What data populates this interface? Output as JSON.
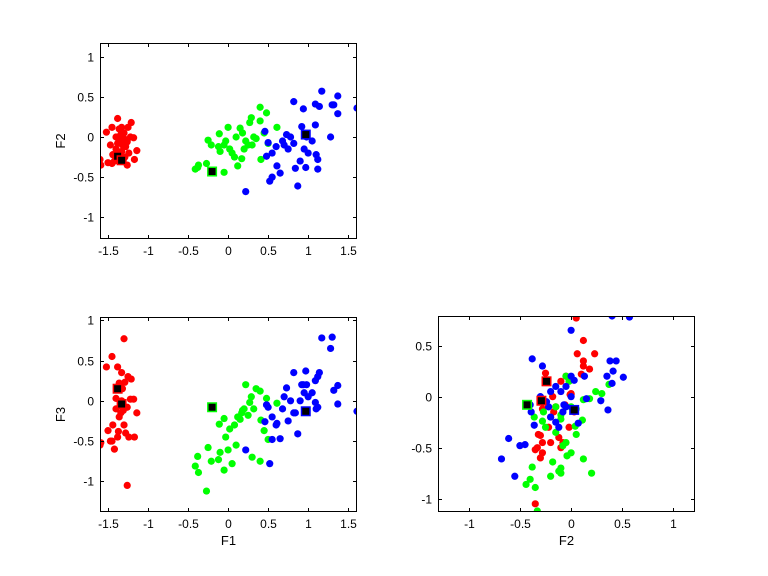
{
  "chart_data": {
    "type": "scatter",
    "features": [
      "F1",
      "F2",
      "F3"
    ],
    "grid": false,
    "series": [
      {
        "color": "#ff0000",
        "points": [
          [
            -1.38,
            0.23,
            0.42
          ],
          [
            -1.21,
            0.18,
            0.27
          ],
          [
            -1.45,
            0.12,
            0.55
          ],
          [
            -1.52,
            0.06,
            0.42
          ],
          [
            -1.33,
            0.12,
            0.35
          ],
          [
            -1.25,
            0.12,
            0.3
          ],
          [
            -1.18,
            -0.01,
            0.02
          ],
          [
            -1.14,
            -0.17,
            -0.15
          ],
          [
            -1.17,
            -0.28,
            -0.45
          ],
          [
            -1.6,
            -0.28,
            -0.55
          ],
          [
            -1.59,
            -0.35,
            -0.52
          ],
          [
            -1.26,
            -0.35,
            -1.05
          ],
          [
            -1.3,
            0.05,
            0.77
          ],
          [
            -1.35,
            -0.05,
            0.2
          ],
          [
            -1.32,
            -0.1,
            0.15
          ],
          [
            -1.4,
            -0.15,
            -0.1
          ],
          [
            -1.36,
            -0.2,
            -0.2
          ],
          [
            -1.3,
            -0.02,
            -0.3
          ],
          [
            -1.28,
            -0.12,
            -0.4
          ],
          [
            -1.42,
            -0.3,
            -0.6
          ],
          [
            -1.45,
            -0.33,
            -0.5
          ],
          [
            -1.5,
            -0.32,
            -0.37
          ],
          [
            -1.38,
            -0.08,
            -0.45
          ],
          [
            -1.33,
            -0.18,
            0.0
          ],
          [
            -1.26,
            -0.06,
            -0.08
          ],
          [
            -1.24,
            -0.2,
            -0.45
          ],
          [
            -1.4,
            0.0,
            0.03
          ],
          [
            -1.34,
            0.03,
            -0.15
          ],
          [
            -1.29,
            -0.25,
            0.23
          ],
          [
            -1.44,
            -0.22,
            -0.3
          ],
          [
            -1.22,
            0.0,
            0.02
          ],
          [
            -1.37,
            -0.3,
            -0.38
          ],
          [
            -1.31,
            -0.28,
            -0.12
          ],
          [
            -1.47,
            -0.1,
            -0.5
          ],
          [
            -1.36,
            0.1,
            0.22
          ]
        ],
        "centroids": [
          [
            -1.38,
            -0.24,
            0.15
          ],
          [
            -1.33,
            -0.29,
            -0.04
          ]
        ]
      },
      {
        "color": "#00ff00",
        "points": [
          [
            -0.41,
            -0.4,
            -0.81
          ],
          [
            -0.37,
            -0.35,
            -0.89
          ],
          [
            -0.38,
            -0.38,
            -0.69
          ],
          [
            -0.27,
            -0.33,
            -1.12
          ],
          [
            -0.05,
            -0.44,
            -0.86
          ],
          [
            -0.25,
            -0.04,
            -0.58
          ],
          [
            -0.21,
            -0.1,
            -0.75
          ],
          [
            -0.11,
            0.04,
            -0.29
          ],
          [
            -0.12,
            -0.12,
            -0.73
          ],
          [
            0.0,
            0.12,
            -0.61
          ],
          [
            -0.03,
            -0.05,
            -0.45
          ],
          [
            0.02,
            -0.15,
            -0.35
          ],
          [
            0.05,
            -0.2,
            -0.78
          ],
          [
            -0.1,
            -0.18,
            -0.64
          ],
          [
            0.12,
            -0.36,
            -0.2
          ],
          [
            0.17,
            -0.27,
            -0.15
          ],
          [
            0.15,
            0.11,
            -0.23
          ],
          [
            0.18,
            0.05,
            -0.12
          ],
          [
            0.29,
            0.24,
            0.05
          ],
          [
            0.27,
            0.18,
            -0.02
          ],
          [
            0.22,
            -0.05,
            0.2
          ],
          [
            0.25,
            -0.1,
            -0.18
          ],
          [
            0.32,
            0.0,
            -0.1
          ],
          [
            0.35,
            -0.02,
            0.15
          ],
          [
            0.4,
            0.37,
            0.12
          ],
          [
            0.41,
            -0.28,
            -0.24
          ],
          [
            0.48,
            0.3,
            0.03
          ],
          [
            0.45,
            0.05,
            -0.37
          ],
          [
            0.5,
            -0.08,
            -0.48
          ],
          [
            0.61,
            0.12,
            -0.03
          ],
          [
            0.3,
            -0.1,
            -0.7
          ],
          [
            0.4,
            0.2,
            -0.75
          ],
          [
            0.08,
            -0.25,
            -0.3
          ],
          [
            -0.05,
            -0.1,
            -0.22
          ],
          [
            0.1,
            0.0,
            -0.55
          ],
          [
            0.2,
            -0.15,
            -0.1
          ]
        ],
        "centroids": [
          [
            -0.2,
            -0.43,
            -0.08
          ]
        ]
      },
      {
        "color": "#0000ff",
        "points": [
          [
            0.22,
            -0.68,
            -0.61
          ],
          [
            0.55,
            -0.5,
            -0.48
          ],
          [
            0.65,
            -0.45,
            -0.47
          ],
          [
            0.61,
            -0.36,
            -0.28
          ],
          [
            0.87,
            -0.61,
            -0.41
          ],
          [
            0.84,
            -0.39,
            -0.15
          ],
          [
            0.97,
            -0.38,
            0.37
          ],
          [
            1.12,
            -0.4,
            -0.08
          ],
          [
            0.82,
            0.44,
            0.35
          ],
          [
            0.94,
            0.35,
            0.2
          ],
          [
            1.09,
            0.41,
            0.25
          ],
          [
            1.14,
            0.38,
            0.35
          ],
          [
            1.17,
            0.57,
            0.78
          ],
          [
            1.37,
            0.51,
            0.19
          ],
          [
            1.32,
            0.4,
            0.13
          ],
          [
            1.37,
            0.29,
            -0.04
          ],
          [
            1.61,
            0.36,
            -0.13
          ],
          [
            1.28,
            0.0,
            0.65
          ],
          [
            1.3,
            0.4,
            0.79
          ],
          [
            1.09,
            0.15,
            -0.02
          ],
          [
            0.92,
            0.13,
            0.2
          ],
          [
            0.73,
            0.03,
            0.16
          ],
          [
            0.46,
            0.07,
            -0.26
          ],
          [
            0.5,
            -0.07,
            -0.08
          ],
          [
            0.48,
            -0.24,
            -0.05
          ],
          [
            0.55,
            -0.2,
            -0.2
          ],
          [
            0.6,
            -0.12,
            -0.3
          ],
          [
            0.7,
            -0.1,
            0.05
          ],
          [
            0.75,
            -0.15,
            -0.25
          ],
          [
            0.78,
            0.0,
            0.0
          ],
          [
            0.95,
            -0.15,
            0.1
          ],
          [
            1.0,
            -0.2,
            0.05
          ],
          [
            1.05,
            -0.05,
            0.1
          ],
          [
            1.1,
            -0.22,
            -0.1
          ],
          [
            0.9,
            -0.3,
            0.0
          ],
          [
            0.98,
            0.0,
            0.2
          ],
          [
            0.52,
            -0.55,
            -0.78
          ],
          [
            0.68,
            -0.05,
            -0.1
          ],
          [
            0.82,
            -0.08,
            -0.15
          ],
          [
            1.12,
            -0.28,
            0.3
          ]
        ],
        "centroids": [
          [
            0.97,
            0.03,
            -0.13
          ]
        ]
      }
    ],
    "panels": [
      {
        "x_feature": 0,
        "y_feature": 1,
        "xlabel": "",
        "ylabel": "F2",
        "xlim": [
          -1.6,
          1.61
        ],
        "ylim": [
          -1.27,
          1.17
        ],
        "xticks": [
          -1.5,
          -1,
          -0.5,
          0,
          0.5,
          1,
          1.5
        ],
        "xtick_labels": [
          "-1.5",
          "-1",
          "-0.5",
          "0",
          "0.5",
          "1",
          "1.5"
        ],
        "yticks": [
          -1,
          -0.5,
          0,
          0.5,
          1
        ],
        "ytick_labels": [
          "-1",
          "-0.5",
          "0",
          "0.5",
          "1"
        ]
      },
      {
        "x_feature": 0,
        "y_feature": 2,
        "xlabel": "F1",
        "ylabel": "F3",
        "xlim": [
          -1.6,
          1.61
        ],
        "ylim": [
          -1.38,
          1.04
        ],
        "xticks": [
          -1.5,
          -1,
          -0.5,
          0,
          0.5,
          1,
          1.5
        ],
        "xtick_labels": [
          "-1.5",
          "-1",
          "-0.5",
          "0",
          "0.5",
          "1",
          "1.5"
        ],
        "yticks": [
          -1,
          -0.5,
          0,
          0.5,
          1
        ],
        "ytick_labels": [
          "-1",
          "-0.5",
          "0",
          "0.5",
          "1"
        ]
      },
      {
        "x_feature": 1,
        "y_feature": 2,
        "xlabel": "F2",
        "ylabel": "",
        "xlim": [
          -1.3,
          1.21
        ],
        "ylim": [
          -1.13,
          0.79
        ],
        "xticks": [
          -1,
          -0.5,
          0,
          0.5,
          1
        ],
        "xtick_labels": [
          "-1",
          "-0.5",
          "0",
          "0.5",
          "1"
        ],
        "yticks": [
          -1,
          -0.5,
          0,
          0.5
        ],
        "ytick_labels": [
          "-1",
          "-0.5",
          "0",
          "0.5"
        ]
      }
    ]
  }
}
